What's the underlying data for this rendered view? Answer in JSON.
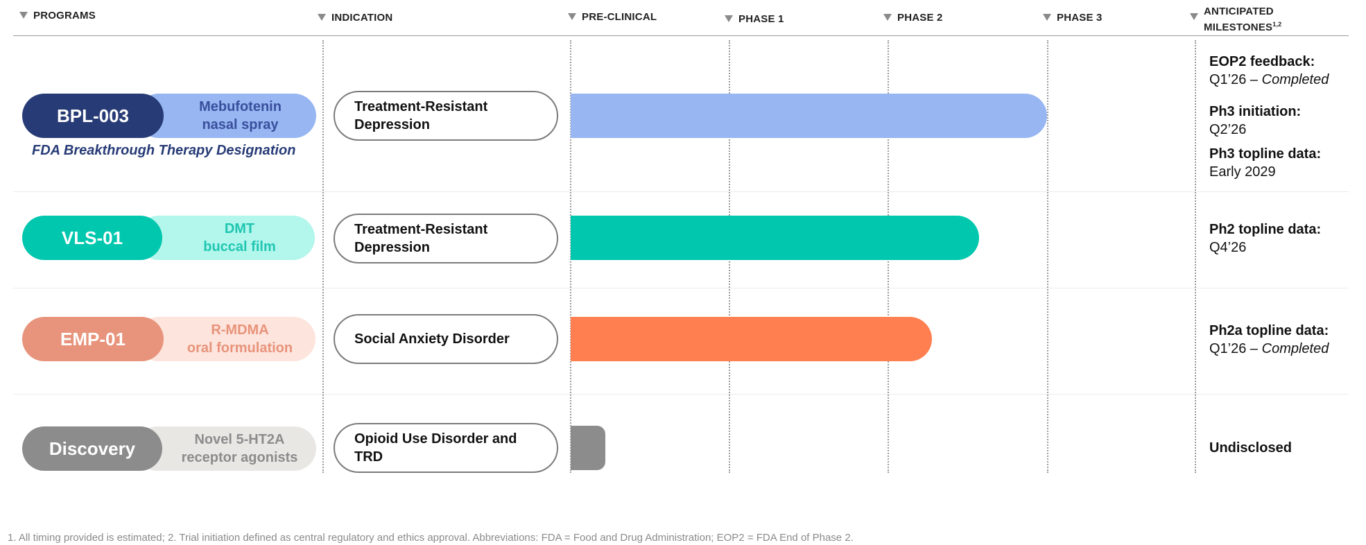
{
  "headers": {
    "programs": "PROGRAMS",
    "indication": "INDICATION",
    "preclinical": "PRE-CLINICAL",
    "phase1": "PHASE 1",
    "phase2": "PHASE 2",
    "phase3": "PHASE 3",
    "milestones_line1": "ANTICIPATED",
    "milestones_line2": "MILESTONES",
    "milestones_sup": "1,2"
  },
  "programs": [
    {
      "code": "BPL-003",
      "desc_line1": "Mebufotenin",
      "desc_line2": "nasal spray",
      "designation": "FDA Breakthrough Therapy Designation",
      "indication": "Treatment-Resistant Depression",
      "progress_phase": "Phase 3",
      "color_code": "#273b76",
      "color_desc": "#97b6f2",
      "color_desc_text": "#3a4f9c",
      "color_bar": "#97b6f2",
      "milestones": [
        {
          "label": "EOP2 feedback:",
          "value": "Q1’26 –",
          "status": "Completed"
        },
        {
          "label": "Ph3 initiation:",
          "value": "Q2’26"
        },
        {
          "label": "Ph3 topline data:",
          "value": "Early 2029"
        }
      ]
    },
    {
      "code": "VLS-01",
      "desc_line1": "DMT",
      "desc_line2": "buccal film",
      "indication": "Treatment-Resistant Depression",
      "progress_phase": "Phase 2",
      "color_code": "#00c7ad",
      "color_desc": "#b2f6ec",
      "color_desc_text": "#1fc6b1",
      "color_bar": "#00c7ad",
      "milestones": [
        {
          "label": "Ph2 topline data:",
          "value": "Q4’26"
        }
      ]
    },
    {
      "code": "EMP-01",
      "desc_line1": "R-MDMA",
      "desc_line2": "oral formulation",
      "indication": "Social Anxiety Disorder",
      "progress_phase": "Phase 2",
      "color_code": "#e8937b",
      "color_desc": "#fde4dc",
      "color_desc_text": "#e8937b",
      "color_bar": "#ff7f50",
      "milestones": [
        {
          "label": "Ph2a topline data:",
          "value": "Q1’26 –",
          "status": "Completed"
        }
      ]
    },
    {
      "code": "Discovery",
      "desc_line1": "Novel 5-HT2A",
      "desc_line2": "receptor agonists",
      "indication": "Opioid Use Disorder and TRD",
      "progress_phase": "Pre-clinical",
      "color_code": "#8c8c8c",
      "color_desc": "#e9e7e4",
      "color_desc_text": "#8c8c8c",
      "color_bar": "#8c8c8c",
      "milestones": [
        {
          "label": "Undisclosed"
        }
      ]
    }
  ],
  "footnote": "1. All timing provided is estimated; 2. Trial initiation defined as central regulatory and ethics approval. Abbreviations: FDA = Food and Drug Administration; EOP2 = FDA End of Phase 2."
}
